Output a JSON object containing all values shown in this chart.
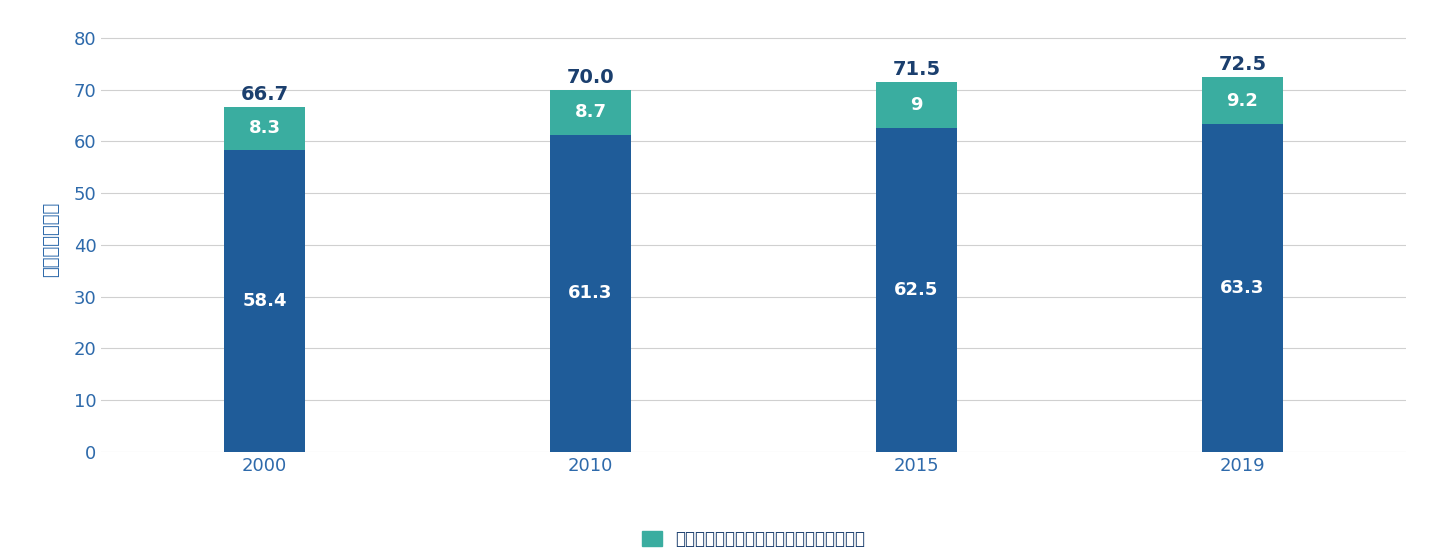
{
  "years": [
    "2000",
    "2010",
    "2015",
    "2019"
  ],
  "healthy_years": [
    58.4,
    61.3,
    62.5,
    63.3
  ],
  "unhealthy_years": [
    8.3,
    8.7,
    9.0,
    9.2
  ],
  "total_years": [
    66.7,
    70.0,
    71.5,
    72.5
  ],
  "bar_color_healthy": "#1f5c99",
  "bar_color_unhealthy": "#3aada0",
  "ylabel": "平均寿命（年）",
  "yticks": [
    0,
    10,
    20,
    30,
    40,
    50,
    60,
    70,
    80
  ],
  "ylim": [
    0,
    82
  ],
  "legend_label": "健康問題を抱えて過ごすと予想される年数",
  "legend_color": "#3aada0",
  "total_label_color": "#1b3f6e",
  "total_label_fontsize": 14,
  "bar_label_color_white": "#ffffff",
  "bar_label_fontsize": 13,
  "bar_width": 0.25,
  "background_color": "#ffffff",
  "grid_color": "#d0d0d0",
  "tick_label_color": "#2e6aab",
  "ylabel_color": "#2e6aab",
  "tick_fontsize": 13,
  "ylabel_fontsize": 13
}
